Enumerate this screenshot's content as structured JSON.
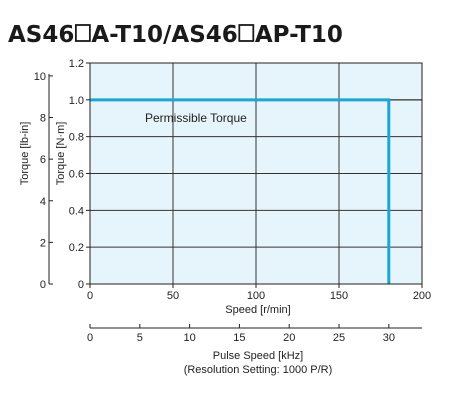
{
  "chart_data": {
    "type": "line",
    "title_parts": [
      "AS46",
      "A-T10/AS46",
      "AP-T10"
    ],
    "xlabel": "Speed [r/min]",
    "ylabel_primary": "Torque [N·m]",
    "ylabel_secondary": "Torque [lb-in]",
    "xlim": [
      0,
      200
    ],
    "ylim": [
      0,
      1.2
    ],
    "ylim_secondary": [
      0,
      10.62
    ],
    "x_ticks": [
      "0",
      "50",
      "100",
      "150",
      "200"
    ],
    "x_tick_values": [
      0,
      50,
      100,
      150,
      200
    ],
    "y_ticks": [
      "0",
      "0.2",
      "0.4",
      "0.6",
      "0.8",
      "1.0",
      "1.2"
    ],
    "y_tick_values": [
      0,
      0.2,
      0.4,
      0.6,
      0.8,
      1.0,
      1.2
    ],
    "y2_ticks": [
      "0",
      "2",
      "4",
      "6",
      "8",
      "10"
    ],
    "y2_tick_values": [
      0,
      2,
      4,
      6,
      8,
      10
    ],
    "grid": true,
    "series": [
      {
        "name": "Permissible Torque",
        "x": [
          0,
          180,
          180
        ],
        "y": [
          1.0,
          1.0,
          0
        ]
      }
    ],
    "extension_line": {
      "x": [
        180,
        200
      ],
      "y": [
        1.0,
        1.0
      ]
    },
    "annotation": "Permissible Torque",
    "secondary_axis": {
      "label": "Pulse Speed [kHz]",
      "sublabel": "(Resolution Setting: 1000 P/R)",
      "ticks": [
        "0",
        "5",
        "10",
        "15",
        "20",
        "25",
        "30"
      ],
      "tick_values": [
        0,
        5,
        10,
        15,
        20,
        25,
        30
      ],
      "range": [
        0,
        33.33
      ]
    },
    "colors": {
      "plot_background": "#e6f4fb",
      "series_line": "#1aa6d6",
      "grid": "#333333"
    }
  }
}
